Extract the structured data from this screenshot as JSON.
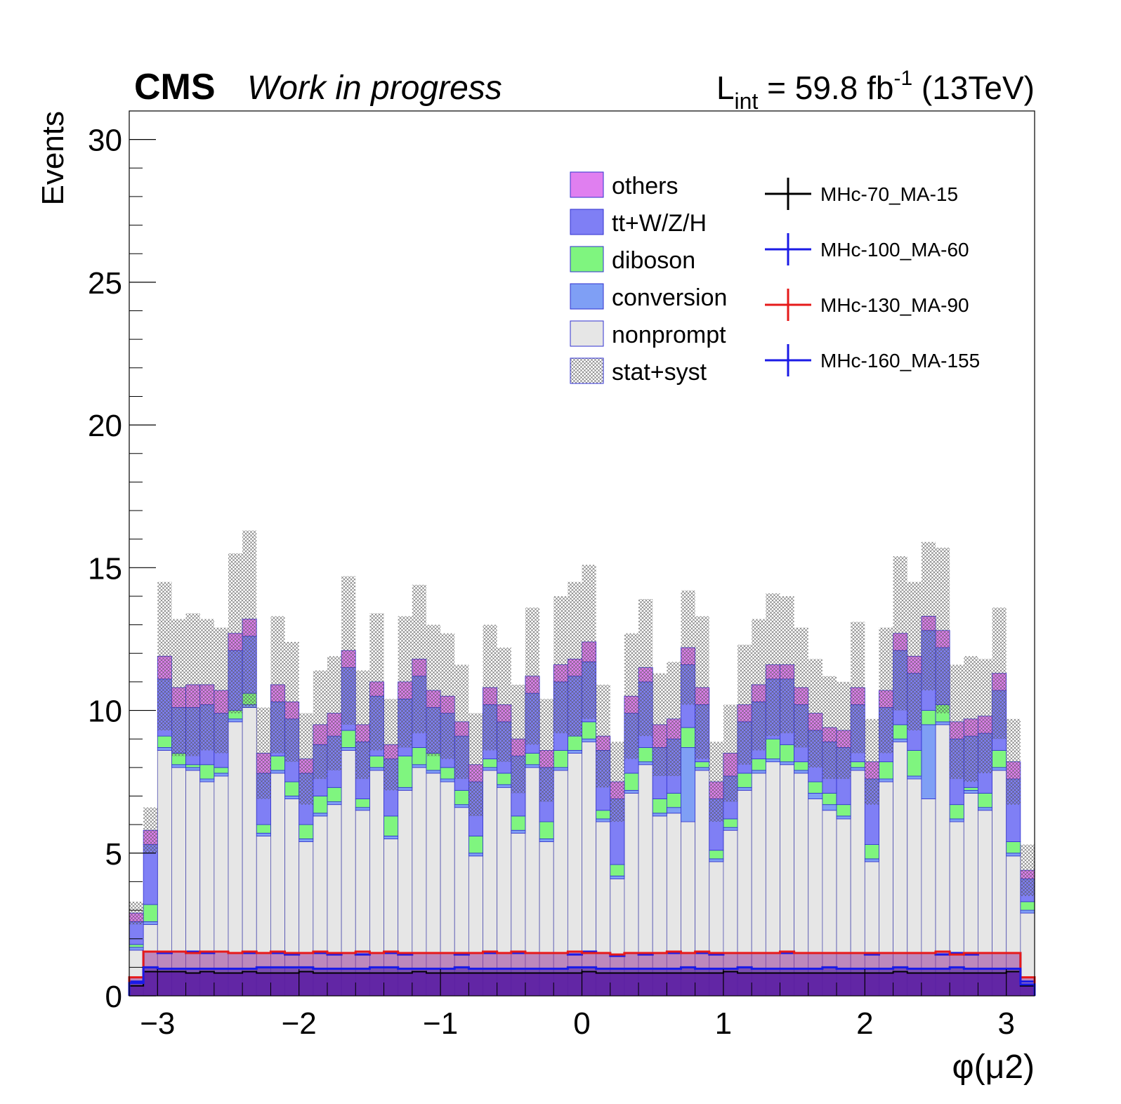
{
  "header": {
    "cms": "CMS",
    "subtitle": "Work in progress",
    "lumi_prefix": "L",
    "lumi_sub": "int",
    "lumi_value": " = 59.8 fb",
    "lumi_sup": "-1",
    "lumi_energy": " (13TeV)"
  },
  "colors": {
    "others": "#e07ff0",
    "ttwzh": "#7f7ff5",
    "diboson": "#7ff57f",
    "conversion": "#7f9ff5",
    "nonprompt": "#e6e6e6",
    "sig70": "#000000",
    "sig100": "#1a1ae6",
    "sig130": "#e61a1a",
    "sig160": "#1a1ae6",
    "signal_fill": "#5a1aa0",
    "signal_fill_top": "#9a3a9a"
  },
  "chart_data": {
    "type": "bar",
    "stacked": true,
    "xlabel": "φ(μ2)",
    "ylabel": "Events",
    "xlim": [
      -3.2,
      3.2
    ],
    "ylim": [
      0,
      31
    ],
    "x_ticks": [
      -3,
      -2,
      -1,
      0,
      1,
      2,
      3
    ],
    "x_tick_labels": [
      "−3",
      "−2",
      "−1",
      "0",
      "1",
      "2",
      "3"
    ],
    "y_ticks": [
      0,
      5,
      10,
      15,
      20,
      25,
      30
    ],
    "y_tick_labels": [
      "0",
      "5",
      "10",
      "15",
      "20",
      "25",
      "30"
    ],
    "legend_position": "top-right",
    "bin_low_edges": [
      -3.2,
      -3.1,
      -3.0,
      -2.9,
      -2.8,
      -2.7,
      -2.6,
      -2.5,
      -2.4,
      -2.3,
      -2.2,
      -2.1,
      -2.0,
      -1.9,
      -1.8,
      -1.7,
      -1.6,
      -1.5,
      -1.4,
      -1.3,
      -1.2,
      -1.1,
      -1.0,
      -0.9,
      -0.8,
      -0.7,
      -0.6,
      -0.5,
      -0.4,
      -0.3,
      -0.2,
      -0.1,
      0.0,
      0.1,
      0.2,
      0.3,
      0.4,
      0.5,
      0.6,
      0.7,
      0.8,
      0.9,
      1.0,
      1.1,
      1.2,
      1.3,
      1.4,
      1.5,
      1.6,
      1.7,
      1.8,
      1.9,
      2.0,
      2.1,
      2.2,
      2.3,
      2.4,
      2.5,
      2.6,
      2.7,
      2.8,
      2.9,
      3.0,
      3.1
    ],
    "bin_width": 0.1,
    "series": [
      {
        "name": "nonprompt",
        "values": [
          1.6,
          2.5,
          8.6,
          8.0,
          7.9,
          7.5,
          7.7,
          9.6,
          10.1,
          5.6,
          7.8,
          6.9,
          5.4,
          6.3,
          6.7,
          8.6,
          6.5,
          7.9,
          5.5,
          7.2,
          8.0,
          7.8,
          7.5,
          6.6,
          4.9,
          7.9,
          7.3,
          5.7,
          8.0,
          5.4,
          7.9,
          8.5,
          8.9,
          6.1,
          4.1,
          7.1,
          8.1,
          6.3,
          6.4,
          6.1,
          7.9,
          4.7,
          5.8,
          7.2,
          7.8,
          8.2,
          8.1,
          7.8,
          6.9,
          6.5,
          6.2,
          7.9,
          4.7,
          7.5,
          8.9,
          7.6,
          6.9,
          9.5,
          6.1,
          7.1,
          6.5,
          7.9,
          4.9,
          2.9
        ]
      },
      {
        "name": "conversion",
        "values": [
          0.1,
          0.1,
          0.1,
          0.1,
          0.1,
          0.1,
          0.1,
          0.1,
          0.1,
          0.1,
          0.1,
          0.1,
          0.1,
          0.1,
          0.1,
          0.1,
          0.1,
          0.1,
          0.1,
          0.1,
          0.1,
          0.1,
          0.1,
          0.1,
          0.1,
          0.1,
          0.1,
          0.1,
          0.1,
          0.1,
          0.1,
          0.1,
          0.1,
          0.1,
          0.1,
          0.1,
          0.1,
          0.1,
          0.2,
          2.6,
          0.1,
          0.1,
          0.1,
          0.1,
          0.1,
          0.1,
          0.1,
          0.1,
          0.2,
          0.2,
          0.1,
          0.1,
          0.1,
          0.1,
          0.1,
          0.1,
          2.6,
          0.1,
          0.1,
          0.1,
          0.1,
          0.1,
          0.1,
          0.1
        ]
      },
      {
        "name": "diboson",
        "values": [
          0.1,
          0.6,
          0.4,
          0.4,
          0.1,
          0.5,
          0.2,
          0.3,
          0.4,
          0.3,
          0.5,
          0.5,
          0.5,
          0.6,
          0.5,
          0.6,
          0.3,
          0.4,
          0.7,
          1.1,
          0.6,
          0.6,
          0.4,
          0.5,
          0.6,
          0.3,
          0.4,
          0.5,
          0.4,
          0.6,
          0.6,
          0.5,
          0.6,
          0.3,
          0.4,
          0.6,
          0.5,
          0.5,
          0.5,
          0.7,
          0.2,
          0.3,
          0.3,
          0.5,
          0.4,
          0.7,
          0.6,
          0.3,
          0.4,
          0.4,
          0.4,
          0.2,
          0.5,
          0.6,
          0.5,
          0.9,
          0.5,
          0.6,
          0.5,
          0.1,
          0.5,
          0.6,
          0.4,
          0.3
        ]
      },
      {
        "name": "tt+W/Z/H",
        "values": [
          0.8,
          2.1,
          2.0,
          1.6,
          2.0,
          2.1,
          1.9,
          2.1,
          2.0,
          1.8,
          1.9,
          2.2,
          1.8,
          1.8,
          1.8,
          2.2,
          2.0,
          2.1,
          2.0,
          2.0,
          2.5,
          1.6,
          1.9,
          1.9,
          1.9,
          1.9,
          1.8,
          2.1,
          2.1,
          1.9,
          2.4,
          2.1,
          2.1,
          2.1,
          2.3,
          2.1,
          2.3,
          1.8,
          1.9,
          2.2,
          2.0,
          1.8,
          1.5,
          1.8,
          2.0,
          2.1,
          2.3,
          2.0,
          1.8,
          1.8,
          2.0,
          2.0,
          2.3,
          1.9,
          2.6,
          2.7,
          2.8,
          2.0,
          2.3,
          1.8,
          2.1,
          2.1,
          2.2,
          0.8
        ]
      },
      {
        "name": "others",
        "values": [
          0.3,
          0.5,
          0.8,
          0.7,
          0.8,
          0.7,
          0.8,
          0.6,
          0.6,
          0.7,
          0.6,
          0.6,
          0.5,
          0.7,
          0.8,
          0.6,
          0.6,
          0.5,
          0.5,
          0.6,
          0.6,
          0.6,
          0.6,
          0.5,
          0.6,
          0.6,
          0.6,
          0.6,
          0.6,
          0.6,
          0.6,
          0.6,
          0.7,
          0.5,
          0.6,
          0.6,
          0.5,
          0.8,
          0.7,
          0.6,
          0.6,
          0.6,
          0.8,
          0.6,
          0.6,
          0.5,
          0.5,
          0.6,
          0.6,
          0.5,
          0.6,
          0.6,
          0.6,
          0.6,
          0.6,
          0.6,
          0.5,
          0.6,
          0.6,
          0.6,
          0.6,
          0.6,
          0.6,
          0.3
        ]
      },
      {
        "name": "stat+syst",
        "values": [
          0.4,
          0.8,
          2.6,
          2.4,
          2.5,
          2.3,
          2.2,
          2.8,
          3.1,
          1.6,
          2.4,
          2.1,
          1.6,
          1.9,
          2.0,
          2.6,
          1.9,
          2.4,
          1.6,
          2.3,
          2.6,
          2.3,
          2.2,
          2.0,
          1.8,
          2.2,
          2.0,
          1.9,
          2.4,
          1.8,
          2.4,
          2.7,
          2.7,
          1.8,
          1.4,
          2.2,
          2.4,
          1.8,
          2.0,
          2.0,
          2.5,
          1.4,
          1.7,
          2.1,
          2.3,
          2.5,
          2.4,
          2.1,
          1.9,
          1.8,
          1.7,
          2.3,
          1.5,
          2.2,
          2.7,
          2.6,
          2.6,
          2.9,
          2.0,
          2.2,
          2.0,
          2.3,
          1.5,
          0.9
        ]
      }
    ],
    "signals": [
      {
        "name": "MHc-70_MA-15",
        "values": [
          0.35,
          0.85,
          0.85,
          0.85,
          0.8,
          0.85,
          0.8,
          0.8,
          0.85,
          0.8,
          0.8,
          0.8,
          0.85,
          0.8,
          0.8,
          0.8,
          0.8,
          0.8,
          0.8,
          0.8,
          0.85,
          0.8,
          0.8,
          0.8,
          0.8,
          0.8,
          0.8,
          0.8,
          0.8,
          0.8,
          0.8,
          0.8,
          0.85,
          0.8,
          0.8,
          0.8,
          0.8,
          0.8,
          0.8,
          0.8,
          0.8,
          0.8,
          0.85,
          0.8,
          0.8,
          0.8,
          0.8,
          0.8,
          0.8,
          0.8,
          0.8,
          0.8,
          0.8,
          0.8,
          0.85,
          0.8,
          0.8,
          0.8,
          0.8,
          0.8,
          0.8,
          0.8,
          0.85,
          0.35
        ]
      },
      {
        "name": "MHc-100_MA-60",
        "values": [
          0.5,
          1.55,
          1.5,
          1.55,
          1.55,
          1.5,
          1.55,
          1.5,
          1.5,
          1.5,
          1.5,
          1.45,
          1.5,
          1.5,
          1.45,
          1.5,
          1.45,
          1.5,
          1.5,
          1.45,
          1.5,
          1.5,
          1.5,
          1.45,
          1.5,
          1.5,
          1.5,
          1.5,
          1.5,
          1.5,
          1.5,
          1.45,
          1.55,
          1.5,
          1.4,
          1.5,
          1.45,
          1.5,
          1.5,
          1.5,
          1.5,
          1.45,
          1.5,
          1.5,
          1.5,
          1.5,
          1.5,
          1.5,
          1.5,
          1.5,
          1.5,
          1.5,
          1.45,
          1.5,
          1.5,
          1.5,
          1.5,
          1.45,
          1.5,
          1.45,
          1.5,
          1.5,
          1.5,
          0.5
        ]
      },
      {
        "name": "MHc-130_MA-90",
        "values": [
          0.65,
          1.55,
          1.55,
          1.55,
          1.5,
          1.55,
          1.55,
          1.5,
          1.55,
          1.5,
          1.55,
          1.5,
          1.5,
          1.55,
          1.5,
          1.5,
          1.55,
          1.5,
          1.55,
          1.5,
          1.5,
          1.5,
          1.5,
          1.5,
          1.5,
          1.55,
          1.5,
          1.55,
          1.5,
          1.5,
          1.5,
          1.55,
          1.5,
          1.5,
          1.45,
          1.5,
          1.5,
          1.5,
          1.55,
          1.5,
          1.55,
          1.5,
          1.5,
          1.5,
          1.5,
          1.5,
          1.55,
          1.5,
          1.5,
          1.5,
          1.5,
          1.5,
          1.5,
          1.5,
          1.5,
          1.5,
          1.5,
          1.55,
          1.45,
          1.5,
          1.5,
          1.5,
          1.5,
          0.65
        ]
      },
      {
        "name": "MHc-160_MA-155",
        "values": [
          0.45,
          1.0,
          0.95,
          0.95,
          0.95,
          0.95,
          0.95,
          0.95,
          0.95,
          1.0,
          1.0,
          1.0,
          1.0,
          0.95,
          0.95,
          0.95,
          0.95,
          1.0,
          1.0,
          0.95,
          0.95,
          0.95,
          0.95,
          1.0,
          0.95,
          0.95,
          0.95,
          0.95,
          0.95,
          0.95,
          0.95,
          1.0,
          1.0,
          0.95,
          0.95,
          0.95,
          0.95,
          0.95,
          0.95,
          1.0,
          0.95,
          0.95,
          0.95,
          1.0,
          0.95,
          0.95,
          0.95,
          0.95,
          0.95,
          1.0,
          0.95,
          0.95,
          0.95,
          0.95,
          1.0,
          0.95,
          0.95,
          0.95,
          1.0,
          0.95,
          0.95,
          0.95,
          0.95,
          0.4
        ]
      }
    ],
    "legend_left": [
      {
        "label": "others",
        "key": "others"
      },
      {
        "label": "tt+W/Z/H",
        "key": "ttwzh"
      },
      {
        "label": "diboson",
        "key": "diboson"
      },
      {
        "label": "conversion",
        "key": "conversion"
      },
      {
        "label": "nonprompt",
        "key": "nonprompt"
      },
      {
        "label": "stat+syst",
        "key": "hatch"
      }
    ],
    "legend_right": [
      {
        "label": "MHc-70_MA-15",
        "key": "sig70"
      },
      {
        "label": "MHc-100_MA-60",
        "key": "sig100"
      },
      {
        "label": "MHc-130_MA-90",
        "key": "sig130"
      },
      {
        "label": "MHc-160_MA-155",
        "key": "sig160"
      }
    ]
  }
}
